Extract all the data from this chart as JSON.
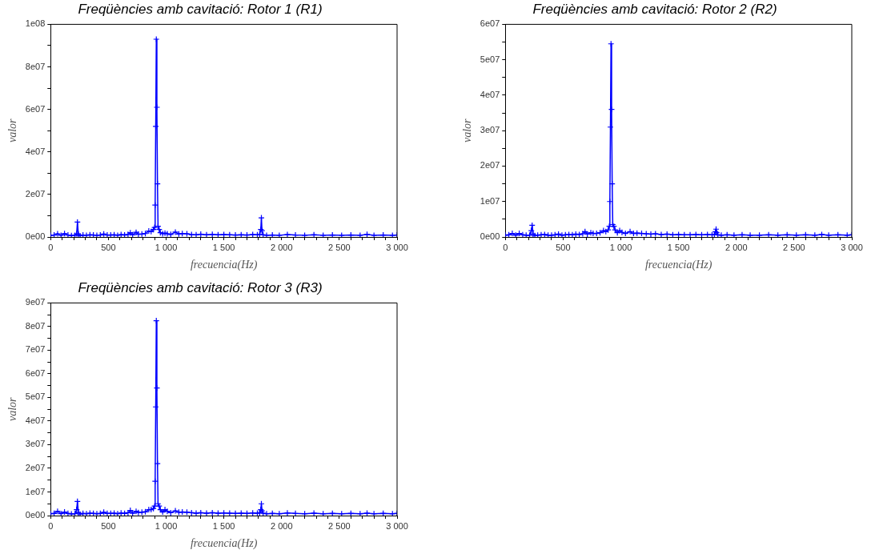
{
  "chart_data": [
    {
      "type": "line",
      "title": "Freqüències amb cavitació: Rotor 1 (R1)",
      "xlabel": "frecuencia(Hz)",
      "ylabel": "valor",
      "grid": false,
      "marker": "cross",
      "line_style": "solid",
      "x": [
        0,
        30,
        60,
        90,
        120,
        150,
        180,
        210,
        225,
        232,
        240,
        255,
        280,
        310,
        340,
        370,
        400,
        430,
        460,
        490,
        520,
        550,
        580,
        610,
        640,
        670,
        690,
        710,
        740,
        760,
        790,
        820,
        850,
        870,
        890,
        900,
        905,
        910,
        915,
        920,
        925,
        930,
        940,
        950,
        970,
        990,
        1010,
        1040,
        1080,
        1110,
        1140,
        1180,
        1220,
        1260,
        1300,
        1350,
        1400,
        1450,
        1500,
        1550,
        1600,
        1650,
        1700,
        1750,
        1790,
        1810,
        1820,
        1825,
        1830,
        1840,
        1870,
        1920,
        1980,
        2050,
        2120,
        2200,
        2280,
        2360,
        2440,
        2520,
        2600,
        2680,
        2740,
        2800,
        2880,
        2960,
        3000
      ],
      "series": [
        {
          "color": "#0000ff",
          "values": [
            800000.0,
            900000.0,
            1500000.0,
            800000.0,
            1600000.0,
            900000.0,
            700000.0,
            800000.0,
            1500000.0,
            7000000.0,
            1200000.0,
            600000.0,
            900000.0,
            800000.0,
            1000000.0,
            900000.0,
            800000.0,
            900000.0,
            1400000.0,
            900000.0,
            900000.0,
            1000000.0,
            800000.0,
            1100000.0,
            900000.0,
            1200000.0,
            2000000.0,
            1000000.0,
            2200000.0,
            1300000.0,
            1400000.0,
            1600000.0,
            2800000.0,
            2500000.0,
            3500000.0,
            4500000.0,
            15000000.0,
            52000000.0,
            93000000.0,
            61000000.0,
            25000000.0,
            5000000.0,
            3500000.0,
            2000000.0,
            1500000.0,
            1800000.0,
            1500000.0,
            1200000.0,
            2300000.0,
            1400000.0,
            1600000.0,
            1500000.0,
            1100000.0,
            1000000.0,
            1300000.0,
            1000000.0,
            1200000.0,
            1000000.0,
            1100000.0,
            1000000.0,
            900000.0,
            1000000.0,
            900000.0,
            1100000.0,
            1000000.0,
            1200000.0,
            3500000.0,
            9000000.0,
            3000000.0,
            1000000.0,
            800000.0,
            900000.0,
            800000.0,
            1100000.0,
            900000.0,
            800000.0,
            1000000.0,
            800000.0,
            900000.0,
            800000.0,
            900000.0,
            800000.0,
            1200000.0,
            800000.0,
            900000.0,
            800000.0,
            900000.0
          ]
        }
      ],
      "xlim": [
        0,
        3000
      ],
      "xticks": [
        {
          "value": 0,
          "label": "0"
        },
        {
          "value": 100,
          "label": null
        },
        {
          "value": 200,
          "label": null
        },
        {
          "value": 300,
          "label": null
        },
        {
          "value": 400,
          "label": null
        },
        {
          "value": 500,
          "label": "500"
        },
        {
          "value": 600,
          "label": null
        },
        {
          "value": 700,
          "label": null
        },
        {
          "value": 800,
          "label": null
        },
        {
          "value": 900,
          "label": null
        },
        {
          "value": 1000,
          "label": "1 000"
        },
        {
          "value": 1100,
          "label": null
        },
        {
          "value": 1200,
          "label": null
        },
        {
          "value": 1300,
          "label": null
        },
        {
          "value": 1400,
          "label": null
        },
        {
          "value": 1500,
          "label": "1 500"
        },
        {
          "value": 1600,
          "label": null
        },
        {
          "value": 1700,
          "label": null
        },
        {
          "value": 1800,
          "label": null
        },
        {
          "value": 1900,
          "label": null
        },
        {
          "value": 2000,
          "label": "2 000"
        },
        {
          "value": 2100,
          "label": null
        },
        {
          "value": 2200,
          "label": null
        },
        {
          "value": 2300,
          "label": null
        },
        {
          "value": 2400,
          "label": null
        },
        {
          "value": 2500,
          "label": "2 500"
        },
        {
          "value": 2600,
          "label": null
        },
        {
          "value": 2700,
          "label": null
        },
        {
          "value": 2800,
          "label": null
        },
        {
          "value": 2900,
          "label": null
        },
        {
          "value": 3000,
          "label": "3 000"
        }
      ],
      "ylim": [
        0,
        100000000
      ],
      "yticks": [
        {
          "value": 0,
          "label": "0e00"
        },
        {
          "value": 10000000,
          "label": null
        },
        {
          "value": 20000000,
          "label": "2e07"
        },
        {
          "value": 30000000,
          "label": null
        },
        {
          "value": 40000000,
          "label": "4e07"
        },
        {
          "value": 50000000,
          "label": null
        },
        {
          "value": 60000000,
          "label": "6e07"
        },
        {
          "value": 70000000,
          "label": null
        },
        {
          "value": 80000000,
          "label": "8e07"
        },
        {
          "value": 90000000,
          "label": null
        },
        {
          "value": 100000000,
          "label": "1e08"
        }
      ]
    },
    {
      "type": "line",
      "title": "Freqüències amb cavitació: Rotor 2 (R2)",
      "xlabel": "frecuencia(Hz)",
      "ylabel": "valor",
      "grid": false,
      "marker": "cross",
      "line_style": "solid",
      "x": [
        0,
        30,
        60,
        90,
        120,
        150,
        180,
        210,
        225,
        232,
        240,
        255,
        280,
        310,
        340,
        370,
        400,
        430,
        460,
        490,
        520,
        550,
        580,
        610,
        640,
        670,
        690,
        710,
        740,
        760,
        790,
        820,
        850,
        870,
        890,
        900,
        905,
        910,
        915,
        920,
        925,
        930,
        940,
        950,
        970,
        990,
        1010,
        1040,
        1080,
        1110,
        1140,
        1180,
        1220,
        1260,
        1300,
        1350,
        1400,
        1450,
        1500,
        1550,
        1600,
        1650,
        1700,
        1750,
        1790,
        1810,
        1820,
        1825,
        1830,
        1840,
        1870,
        1920,
        1980,
        2050,
        2120,
        2200,
        2280,
        2360,
        2440,
        2520,
        2600,
        2680,
        2740,
        2800,
        2880,
        2960,
        3000
      ],
      "series": [
        {
          "color": "#0000ff",
          "values": [
            500000.0,
            600000.0,
            1000000.0,
            500000.0,
            1000000.0,
            600000.0,
            500000.0,
            500000.0,
            1800000.0,
            3300000.0,
            800000.0,
            400000.0,
            500000.0,
            600000.0,
            700000.0,
            500000.0,
            500000.0,
            600000.0,
            800000.0,
            500000.0,
            600000.0,
            700000.0,
            600000.0,
            800000.0,
            700000.0,
            900000.0,
            1500000.0,
            800000.0,
            1200000.0,
            1000000.0,
            1000000.0,
            1200000.0,
            1800000.0,
            1500000.0,
            2000000.0,
            3000000.0,
            10000000.0,
            31000000.0,
            54500000.0,
            36000000.0,
            15000000.0,
            3500000.0,
            3000000.0,
            2000000.0,
            1200000.0,
            1800000.0,
            1300000.0,
            1000000.0,
            1500000.0,
            1000000.0,
            1100000.0,
            1000000.0,
            900000.0,
            800000.0,
            900000.0,
            700000.0,
            800000.0,
            600000.0,
            700000.0,
            600000.0,
            600000.0,
            700000.0,
            600000.0,
            700000.0,
            600000.0,
            700000.0,
            1500000.0,
            2200000.0,
            1200000.0,
            600000.0,
            500000.0,
            600000.0,
            500000.0,
            600000.0,
            500000.0,
            500000.0,
            600000.0,
            500000.0,
            600000.0,
            500000.0,
            600000.0,
            500000.0,
            700000.0,
            500000.0,
            600000.0,
            500000.0,
            600000.0
          ]
        }
      ],
      "xlim": [
        0,
        3000
      ],
      "xticks": [
        {
          "value": 0,
          "label": "0"
        },
        {
          "value": 100,
          "label": null
        },
        {
          "value": 200,
          "label": null
        },
        {
          "value": 300,
          "label": null
        },
        {
          "value": 400,
          "label": null
        },
        {
          "value": 500,
          "label": "500"
        },
        {
          "value": 600,
          "label": null
        },
        {
          "value": 700,
          "label": null
        },
        {
          "value": 800,
          "label": null
        },
        {
          "value": 900,
          "label": null
        },
        {
          "value": 1000,
          "label": "1 000"
        },
        {
          "value": 1100,
          "label": null
        },
        {
          "value": 1200,
          "label": null
        },
        {
          "value": 1300,
          "label": null
        },
        {
          "value": 1400,
          "label": null
        },
        {
          "value": 1500,
          "label": "1 500"
        },
        {
          "value": 1600,
          "label": null
        },
        {
          "value": 1700,
          "label": null
        },
        {
          "value": 1800,
          "label": null
        },
        {
          "value": 1900,
          "label": null
        },
        {
          "value": 2000,
          "label": "2 000"
        },
        {
          "value": 2100,
          "label": null
        },
        {
          "value": 2200,
          "label": null
        },
        {
          "value": 2300,
          "label": null
        },
        {
          "value": 2400,
          "label": null
        },
        {
          "value": 2500,
          "label": "2 500"
        },
        {
          "value": 2600,
          "label": null
        },
        {
          "value": 2700,
          "label": null
        },
        {
          "value": 2800,
          "label": null
        },
        {
          "value": 2900,
          "label": null
        },
        {
          "value": 3000,
          "label": "3 000"
        }
      ],
      "ylim": [
        0,
        60000000
      ],
      "yticks": [
        {
          "value": 0,
          "label": "0e00"
        },
        {
          "value": 5000000,
          "label": null
        },
        {
          "value": 10000000,
          "label": "1e07"
        },
        {
          "value": 15000000,
          "label": null
        },
        {
          "value": 20000000,
          "label": "2e07"
        },
        {
          "value": 25000000,
          "label": null
        },
        {
          "value": 30000000,
          "label": "3e07"
        },
        {
          "value": 35000000,
          "label": null
        },
        {
          "value": 40000000,
          "label": "4e07"
        },
        {
          "value": 45000000,
          "label": null
        },
        {
          "value": 50000000,
          "label": "5e07"
        },
        {
          "value": 55000000,
          "label": null
        },
        {
          "value": 60000000,
          "label": "6e07"
        }
      ]
    },
    {
      "type": "line",
      "title": "Freqüències amb cavitació: Rotor 3 (R3)",
      "xlabel": "frecuencia(Hz)",
      "ylabel": "valor",
      "grid": false,
      "marker": "cross",
      "line_style": "solid",
      "x": [
        0,
        30,
        60,
        90,
        120,
        150,
        180,
        210,
        225,
        232,
        240,
        255,
        280,
        310,
        340,
        370,
        400,
        430,
        460,
        490,
        520,
        550,
        580,
        610,
        640,
        670,
        690,
        710,
        740,
        760,
        790,
        820,
        850,
        870,
        890,
        900,
        905,
        910,
        915,
        920,
        925,
        930,
        940,
        950,
        970,
        990,
        1010,
        1040,
        1080,
        1110,
        1140,
        1180,
        1220,
        1260,
        1300,
        1350,
        1400,
        1450,
        1500,
        1550,
        1600,
        1650,
        1700,
        1750,
        1790,
        1810,
        1820,
        1825,
        1830,
        1840,
        1870,
        1920,
        1980,
        2050,
        2120,
        2200,
        2280,
        2360,
        2440,
        2520,
        2600,
        2680,
        2740,
        2800,
        2880,
        2960,
        3000
      ],
      "series": [
        {
          "color": "#0000ff",
          "values": [
            800000.0,
            900000.0,
            1800000.0,
            800000.0,
            1500000.0,
            900000.0,
            700000.0,
            800000.0,
            2500000.0,
            6000000.0,
            1200000.0,
            600000.0,
            900000.0,
            800000.0,
            1000000.0,
            900000.0,
            800000.0,
            900000.0,
            1400000.0,
            900000.0,
            900000.0,
            1000000.0,
            800000.0,
            1100000.0,
            900000.0,
            1200000.0,
            2200000.0,
            1000000.0,
            1800000.0,
            1300000.0,
            1400000.0,
            1600000.0,
            2500000.0,
            2500000.0,
            3000000.0,
            4000000.0,
            14500000.0,
            46000000.0,
            82500000.0,
            54000000.0,
            22000000.0,
            5000000.0,
            4000000.0,
            2500000.0,
            1500000.0,
            2500000.0,
            1800000.0,
            1200000.0,
            2000000.0,
            1400000.0,
            1500000.0,
            1400000.0,
            1200000.0,
            1000000.0,
            1200000.0,
            1000000.0,
            1200000.0,
            1000000.0,
            1100000.0,
            1000000.0,
            900000.0,
            1000000.0,
            900000.0,
            1100000.0,
            1000000.0,
            1200000.0,
            2500000.0,
            5000000.0,
            2000000.0,
            1000000.0,
            800000.0,
            900000.0,
            800000.0,
            1100000.0,
            900000.0,
            800000.0,
            1000000.0,
            800000.0,
            900000.0,
            800000.0,
            900000.0,
            800000.0,
            1000000.0,
            800000.0,
            900000.0,
            800000.0,
            900000.0
          ]
        }
      ],
      "xlim": [
        0,
        3000
      ],
      "xticks": [
        {
          "value": 0,
          "label": "0"
        },
        {
          "value": 100,
          "label": null
        },
        {
          "value": 200,
          "label": null
        },
        {
          "value": 300,
          "label": null
        },
        {
          "value": 400,
          "label": null
        },
        {
          "value": 500,
          "label": "500"
        },
        {
          "value": 600,
          "label": null
        },
        {
          "value": 700,
          "label": null
        },
        {
          "value": 800,
          "label": null
        },
        {
          "value": 900,
          "label": null
        },
        {
          "value": 1000,
          "label": "1 000"
        },
        {
          "value": 1100,
          "label": null
        },
        {
          "value": 1200,
          "label": null
        },
        {
          "value": 1300,
          "label": null
        },
        {
          "value": 1400,
          "label": null
        },
        {
          "value": 1500,
          "label": "1 500"
        },
        {
          "value": 1600,
          "label": null
        },
        {
          "value": 1700,
          "label": null
        },
        {
          "value": 1800,
          "label": null
        },
        {
          "value": 1900,
          "label": null
        },
        {
          "value": 2000,
          "label": "2 000"
        },
        {
          "value": 2100,
          "label": null
        },
        {
          "value": 2200,
          "label": null
        },
        {
          "value": 2300,
          "label": null
        },
        {
          "value": 2400,
          "label": null
        },
        {
          "value": 2500,
          "label": "2 500"
        },
        {
          "value": 2600,
          "label": null
        },
        {
          "value": 2700,
          "label": null
        },
        {
          "value": 2800,
          "label": null
        },
        {
          "value": 2900,
          "label": null
        },
        {
          "value": 3000,
          "label": "3 000"
        }
      ],
      "ylim": [
        0,
        90000000
      ],
      "yticks": [
        {
          "value": 0,
          "label": "0e00"
        },
        {
          "value": 5000000,
          "label": null
        },
        {
          "value": 10000000,
          "label": "1e07"
        },
        {
          "value": 15000000,
          "label": null
        },
        {
          "value": 20000000,
          "label": "2e07"
        },
        {
          "value": 25000000,
          "label": null
        },
        {
          "value": 30000000,
          "label": "3e07"
        },
        {
          "value": 35000000,
          "label": null
        },
        {
          "value": 40000000,
          "label": "4e07"
        },
        {
          "value": 45000000,
          "label": null
        },
        {
          "value": 50000000,
          "label": "5e07"
        },
        {
          "value": 55000000,
          "label": null
        },
        {
          "value": 60000000,
          "label": "6e07"
        },
        {
          "value": 65000000,
          "label": null
        },
        {
          "value": 70000000,
          "label": "7e07"
        },
        {
          "value": 75000000,
          "label": null
        },
        {
          "value": 80000000,
          "label": "8e07"
        },
        {
          "value": 85000000,
          "label": null
        },
        {
          "value": 90000000,
          "label": "9e07"
        }
      ]
    }
  ]
}
